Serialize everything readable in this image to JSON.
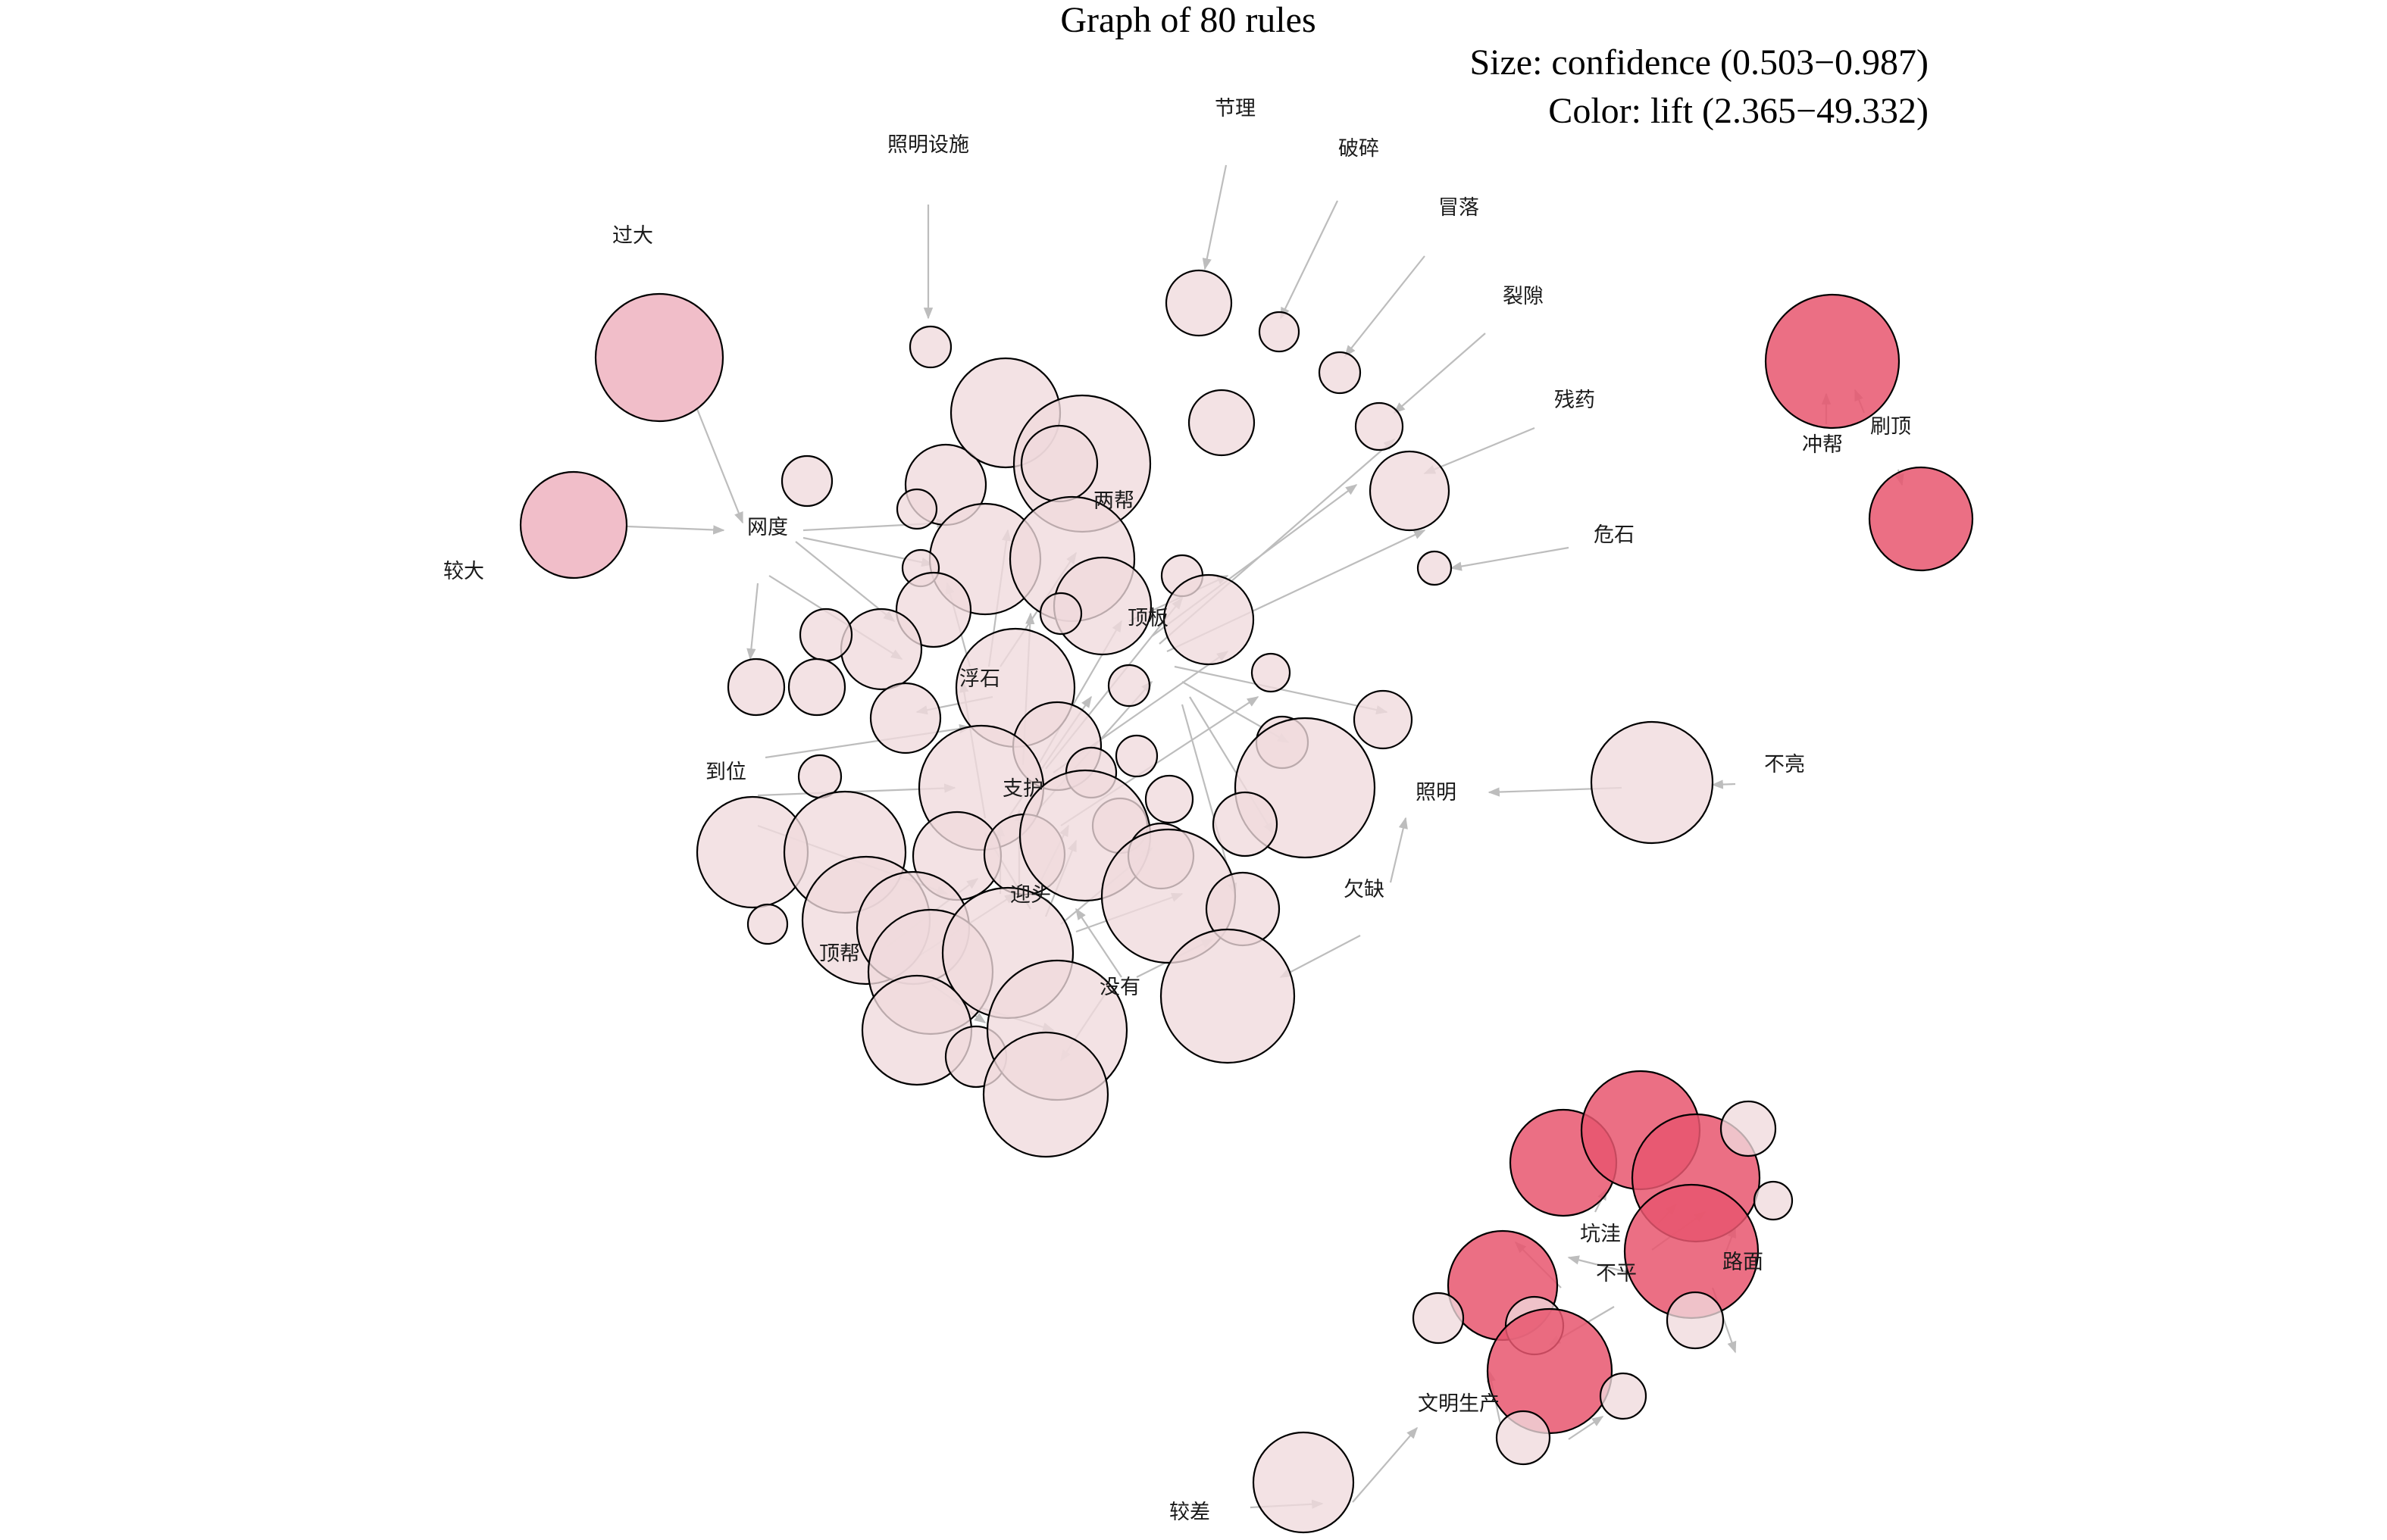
{
  "graph": {
    "title": "Graph of 80 rules",
    "size_legend": "Size: confidence (0.503−0.987)",
    "color_legend": "Color: lift (2.365−49.332)",
    "colors": {
      "lift_low": "#f0dadd",
      "lift_mid": "#efb3bf",
      "lift_high": "#e8566f",
      "edge": "#bdbdbd"
    },
    "items": [
      "照明设施",
      "节理",
      "破碎",
      "冒落",
      "裂隙",
      "残药",
      "危石",
      "过大",
      "较大",
      "网度",
      "两帮",
      "顶板",
      "浮石",
      "到位",
      "支护",
      "照明",
      "不亮",
      "欠缺",
      "迎头",
      "顶帮",
      "没有",
      "冲帮",
      "刷顶",
      "坑洼",
      "路面",
      "不平",
      "文明生产",
      "较差"
    ]
  }
}
